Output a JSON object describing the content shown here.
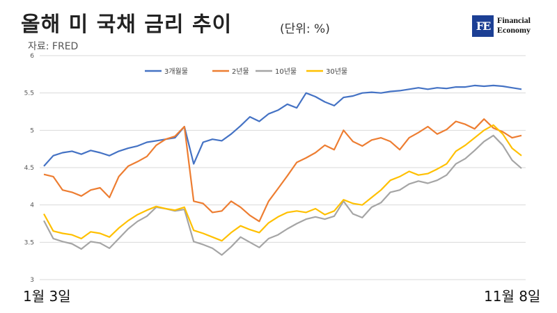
{
  "header": {
    "title": "올해 미 국채 금리 추이",
    "unit": "(단위: %)",
    "source": "자료: FRED"
  },
  "logo": {
    "line1": "Financial",
    "line2": "Economy",
    "mark": "FE"
  },
  "xaxis": {
    "start_label": "1월 3일",
    "end_label": "11월 8일"
  },
  "chart_data": {
    "type": "line",
    "title": "",
    "xlabel": "",
    "ylabel": "",
    "ylim": [
      3,
      6
    ],
    "yticks": [
      "3",
      "3.5",
      "4",
      "4.5",
      "5",
      "5.5",
      "6"
    ],
    "grid": true,
    "legend_position": "top",
    "x_range": [
      "1월 3일",
      "11월 8일"
    ],
    "series": [
      {
        "name": "3개월물",
        "color": "#4472c4",
        "values": [
          4.52,
          4.66,
          4.7,
          4.72,
          4.68,
          4.73,
          4.7,
          4.66,
          4.72,
          4.76,
          4.79,
          4.84,
          4.86,
          4.88,
          4.9,
          5.05,
          4.55,
          4.84,
          4.88,
          4.86,
          4.95,
          5.06,
          5.18,
          5.12,
          5.22,
          5.27,
          5.35,
          5.3,
          5.5,
          5.45,
          5.38,
          5.33,
          5.44,
          5.46,
          5.5,
          5.51,
          5.5,
          5.52,
          5.53,
          5.55,
          5.57,
          5.55,
          5.57,
          5.56,
          5.58,
          5.58,
          5.6,
          5.59,
          5.6,
          5.59,
          5.57,
          5.55
        ]
      },
      {
        "name": "2년물",
        "color": "#ed7d31",
        "values": [
          4.41,
          4.38,
          4.2,
          4.17,
          4.12,
          4.2,
          4.23,
          4.1,
          4.38,
          4.52,
          4.58,
          4.65,
          4.8,
          4.88,
          4.92,
          5.05,
          4.05,
          4.02,
          3.9,
          3.92,
          4.05,
          3.97,
          3.86,
          3.78,
          4.05,
          4.22,
          4.39,
          4.57,
          4.63,
          4.7,
          4.8,
          4.74,
          5.0,
          4.85,
          4.79,
          4.87,
          4.9,
          4.85,
          4.74,
          4.9,
          4.97,
          5.05,
          4.95,
          5.01,
          5.12,
          5.08,
          5.02,
          5.15,
          5.03,
          4.98,
          4.9,
          4.93
        ]
      },
      {
        "name": "10년물",
        "color": "#a5a5a5",
        "values": [
          3.79,
          3.55,
          3.51,
          3.48,
          3.41,
          3.51,
          3.49,
          3.42,
          3.55,
          3.68,
          3.78,
          3.85,
          3.97,
          3.95,
          3.92,
          3.94,
          3.51,
          3.47,
          3.42,
          3.33,
          3.44,
          3.57,
          3.5,
          3.43,
          3.55,
          3.6,
          3.68,
          3.75,
          3.81,
          3.84,
          3.81,
          3.85,
          4.05,
          3.88,
          3.83,
          3.97,
          4.03,
          4.17,
          4.2,
          4.28,
          4.32,
          4.29,
          4.33,
          4.4,
          4.55,
          4.62,
          4.73,
          4.85,
          4.93,
          4.8,
          4.6,
          4.49
        ]
      },
      {
        "name": "30년물",
        "color": "#ffc000",
        "values": [
          3.88,
          3.65,
          3.62,
          3.6,
          3.55,
          3.64,
          3.62,
          3.57,
          3.69,
          3.79,
          3.87,
          3.93,
          3.98,
          3.95,
          3.93,
          3.97,
          3.66,
          3.62,
          3.57,
          3.52,
          3.63,
          3.72,
          3.67,
          3.63,
          3.76,
          3.84,
          3.9,
          3.92,
          3.9,
          3.95,
          3.87,
          3.92,
          4.07,
          4.02,
          4.0,
          4.1,
          4.2,
          4.33,
          4.38,
          4.45,
          4.4,
          4.42,
          4.48,
          4.55,
          4.72,
          4.8,
          4.9,
          5.0,
          5.07,
          4.95,
          4.76,
          4.66
        ]
      }
    ]
  }
}
